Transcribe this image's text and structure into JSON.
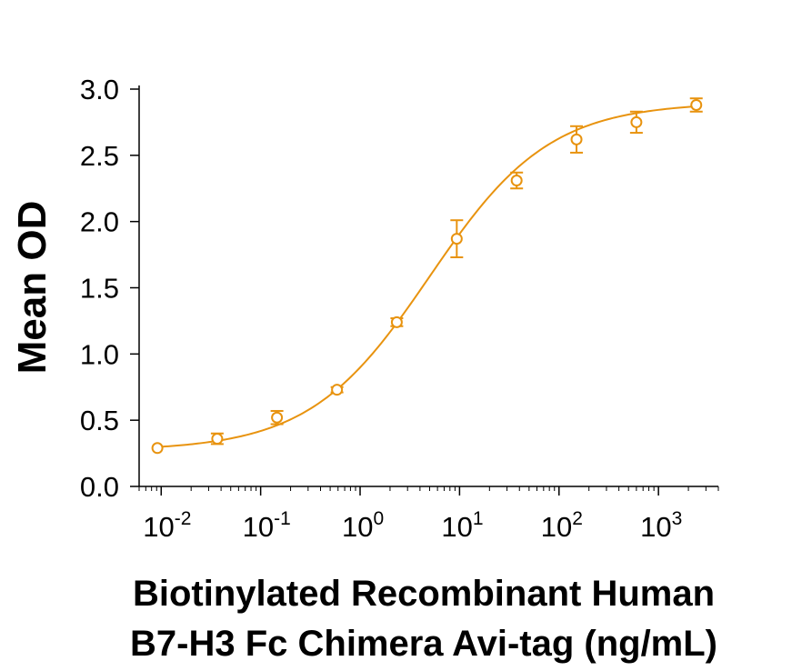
{
  "chart_data": {
    "type": "scatter",
    "title": "",
    "ylabel": "Mean OD",
    "xlabel_lines": [
      "Biotinylated Recombinant Human",
      "B7-H3 Fc Chimera Avi-tag (ng/mL)"
    ],
    "x_scale": "log",
    "xlim": [
      0.006,
      4000
    ],
    "ylim": [
      0,
      3
    ],
    "y_ticks": [
      "0.0",
      "0.5",
      "1.0",
      "1.5",
      "2.0",
      "2.5",
      "3.0"
    ],
    "x_ticks": [
      {
        "base": "10",
        "exp": "-2"
      },
      {
        "base": "10",
        "exp": "-1"
      },
      {
        "base": "10",
        "exp": "0"
      },
      {
        "base": "10",
        "exp": "1"
      },
      {
        "base": "10",
        "exp": "2"
      },
      {
        "base": "10",
        "exp": "3"
      }
    ],
    "grid": false,
    "color": "#E8930F",
    "marker": "open-circle",
    "series": [
      {
        "x": [
          0.00916,
          0.0366,
          0.146,
          0.586,
          2.34,
          9.375,
          37.5,
          150,
          600,
          2400
        ],
        "y": [
          0.29,
          0.36,
          0.52,
          0.73,
          1.24,
          1.87,
          2.31,
          2.62,
          2.75,
          2.88
        ],
        "err": [
          0.0,
          0.04,
          0.05,
          0.02,
          0.03,
          0.14,
          0.06,
          0.1,
          0.08,
          0.05
        ]
      }
    ],
    "fit": {
      "type": "4PL",
      "bottom": 0.27,
      "top": 2.9,
      "ec50": 5.0,
      "hill": 0.72
    }
  }
}
